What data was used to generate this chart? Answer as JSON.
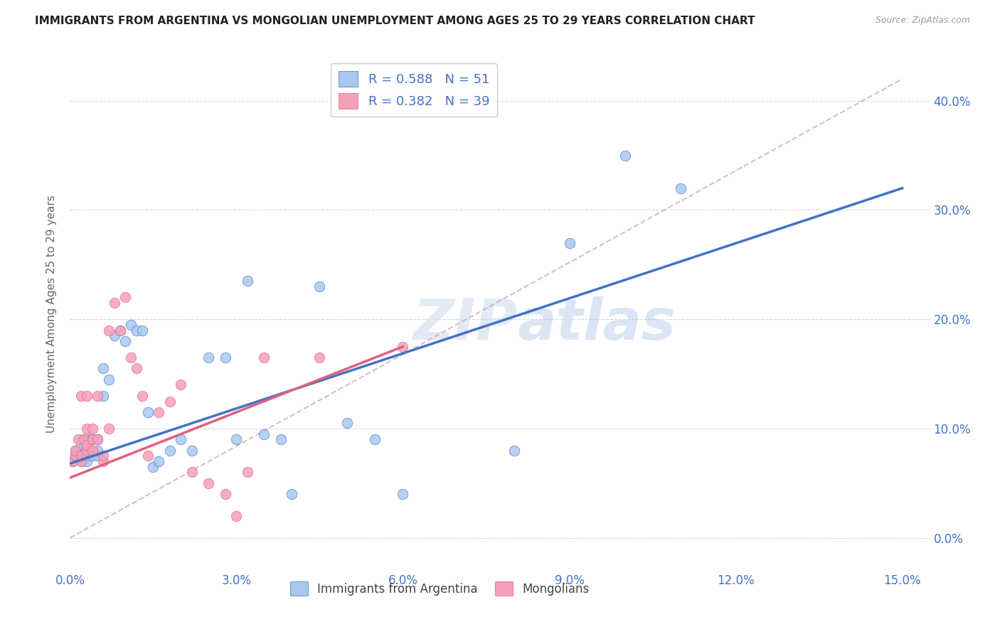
{
  "title": "IMMIGRANTS FROM ARGENTINA VS MONGOLIAN UNEMPLOYMENT AMONG AGES 25 TO 29 YEARS CORRELATION CHART",
  "source": "Source: ZipAtlas.com",
  "ylabel": "Unemployment Among Ages 25 to 29 years",
  "legend_label1": "Immigrants from Argentina",
  "legend_label2": "Mongolians",
  "r1": 0.588,
  "n1": 51,
  "r2": 0.382,
  "n2": 39,
  "color_blue": "#a8c8f0",
  "color_pink": "#f4a0b8",
  "color_blue_dark": "#4472c4",
  "color_pink_dark": "#e06080",
  "xlim": [
    0.0,
    0.155
  ],
  "ylim": [
    -0.03,
    0.44
  ],
  "xtick_vals": [
    0.0,
    0.03,
    0.06,
    0.09,
    0.12,
    0.15
  ],
  "ytick_vals": [
    0.0,
    0.1,
    0.2,
    0.3,
    0.4
  ],
  "argentina_x": [
    0.0005,
    0.001,
    0.001,
    0.0015,
    0.0015,
    0.002,
    0.002,
    0.002,
    0.002,
    0.0025,
    0.003,
    0.003,
    0.003,
    0.003,
    0.0035,
    0.004,
    0.004,
    0.004,
    0.005,
    0.005,
    0.005,
    0.006,
    0.006,
    0.007,
    0.008,
    0.009,
    0.01,
    0.011,
    0.012,
    0.013,
    0.014,
    0.015,
    0.016,
    0.018,
    0.02,
    0.022,
    0.025,
    0.028,
    0.03,
    0.032,
    0.035,
    0.038,
    0.04,
    0.045,
    0.05,
    0.055,
    0.06,
    0.08,
    0.09,
    0.1,
    0.11
  ],
  "argentina_y": [
    0.07,
    0.075,
    0.08,
    0.075,
    0.08,
    0.07,
    0.075,
    0.08,
    0.085,
    0.09,
    0.07,
    0.075,
    0.08,
    0.085,
    0.09,
    0.075,
    0.08,
    0.09,
    0.075,
    0.08,
    0.09,
    0.13,
    0.155,
    0.145,
    0.185,
    0.19,
    0.18,
    0.195,
    0.19,
    0.19,
    0.115,
    0.065,
    0.07,
    0.08,
    0.09,
    0.08,
    0.165,
    0.165,
    0.09,
    0.235,
    0.095,
    0.09,
    0.04,
    0.23,
    0.105,
    0.09,
    0.04,
    0.08,
    0.27,
    0.35,
    0.32
  ],
  "mongolian_x": [
    0.0005,
    0.001,
    0.001,
    0.0015,
    0.002,
    0.002,
    0.002,
    0.0025,
    0.003,
    0.003,
    0.003,
    0.003,
    0.004,
    0.004,
    0.004,
    0.005,
    0.005,
    0.006,
    0.006,
    0.007,
    0.007,
    0.008,
    0.009,
    0.01,
    0.011,
    0.012,
    0.013,
    0.014,
    0.016,
    0.018,
    0.02,
    0.022,
    0.025,
    0.028,
    0.03,
    0.032,
    0.035,
    0.045,
    0.06
  ],
  "mongolian_y": [
    0.07,
    0.075,
    0.08,
    0.09,
    0.07,
    0.075,
    0.13,
    0.09,
    0.08,
    0.085,
    0.1,
    0.13,
    0.08,
    0.09,
    0.1,
    0.09,
    0.13,
    0.07,
    0.075,
    0.1,
    0.19,
    0.215,
    0.19,
    0.22,
    0.165,
    0.155,
    0.13,
    0.075,
    0.115,
    0.125,
    0.14,
    0.06,
    0.05,
    0.04,
    0.02,
    0.06,
    0.165,
    0.165,
    0.175
  ],
  "blue_line_x": [
    0.0,
    0.15
  ],
  "blue_line_y": [
    0.068,
    0.32
  ],
  "pink_line_x": [
    0.0,
    0.06
  ],
  "pink_line_y": [
    0.055,
    0.175
  ],
  "diag_line_x": [
    0.0,
    0.15
  ],
  "diag_line_y": [
    0.0,
    0.42
  ]
}
